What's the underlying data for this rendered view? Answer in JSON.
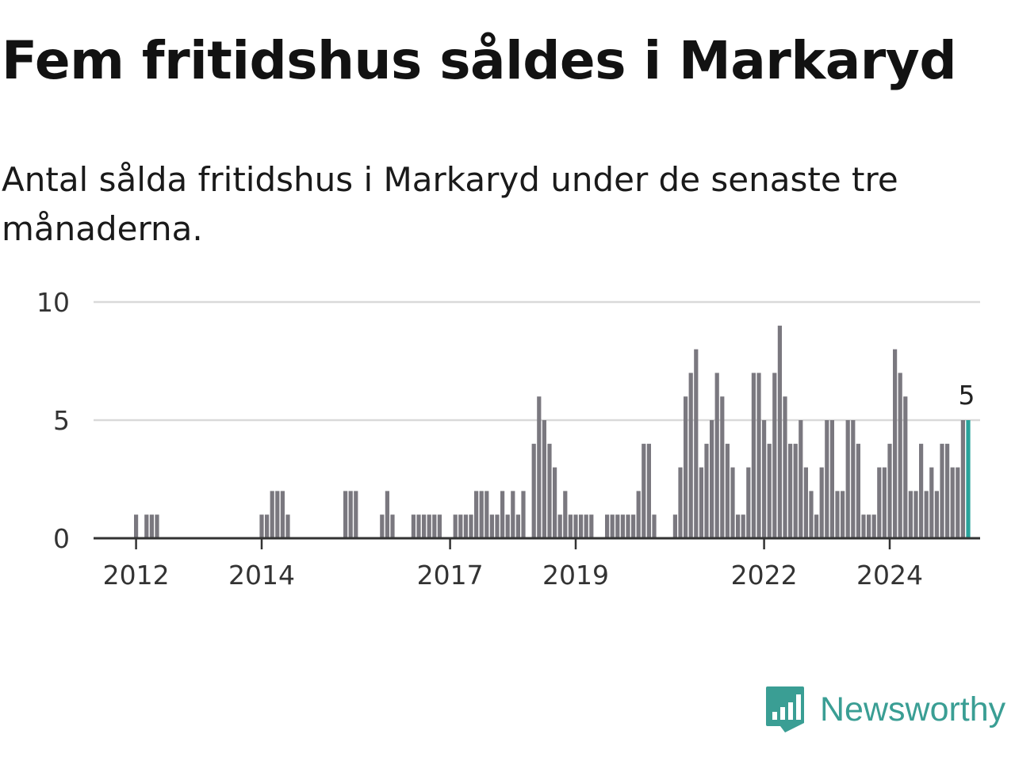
{
  "brand": {
    "name": "Newsworthy",
    "icon": "newsworthy-logo-icon",
    "color": "#3a9e94"
  },
  "chart_data": {
    "type": "bar",
    "title": "Fem fritidshus såldes i Markaryd",
    "subtitle": "Antal sålda fritidshus i Markaryd under de senaste tre månaderna.",
    "xlabel": "",
    "ylabel": "",
    "ylim": [
      0,
      10
    ],
    "yticks": [
      "0",
      "5",
      "10"
    ],
    "xticks": [
      "2012",
      "2014",
      "2017",
      "2019",
      "2022",
      "2024"
    ],
    "grid": true,
    "bar_color": "#7a787f",
    "highlight_color": "#29a39b",
    "highlight_label": "5",
    "values": [
      1,
      0,
      1,
      1,
      1,
      0,
      0,
      0,
      0,
      0,
      0,
      0,
      0,
      0,
      0,
      0,
      0,
      0,
      0,
      0,
      0,
      0,
      0,
      0,
      1,
      1,
      2,
      2,
      2,
      1,
      0,
      0,
      0,
      0,
      0,
      0,
      0,
      0,
      0,
      0,
      2,
      2,
      2,
      0,
      0,
      0,
      0,
      1,
      2,
      1,
      0,
      0,
      0,
      1,
      1,
      1,
      1,
      1,
      1,
      0,
      0,
      1,
      1,
      1,
      1,
      2,
      2,
      2,
      1,
      1,
      2,
      1,
      2,
      1,
      2,
      0,
      4,
      6,
      5,
      4,
      3,
      1,
      2,
      1,
      1,
      1,
      1,
      1,
      0,
      0,
      1,
      1,
      1,
      1,
      1,
      1,
      2,
      4,
      4,
      1,
      0,
      0,
      0,
      1,
      3,
      6,
      7,
      8,
      3,
      4,
      5,
      7,
      6,
      4,
      3,
      1,
      1,
      3,
      7,
      7,
      5,
      4,
      7,
      9,
      6,
      4,
      4,
      5,
      3,
      2,
      1,
      3,
      5,
      5,
      2,
      2,
      5,
      5,
      4,
      1,
      1,
      1,
      3,
      3,
      4,
      8,
      7,
      6,
      2,
      2,
      4,
      2,
      3,
      2,
      4,
      4,
      3,
      3,
      5,
      5
    ]
  }
}
